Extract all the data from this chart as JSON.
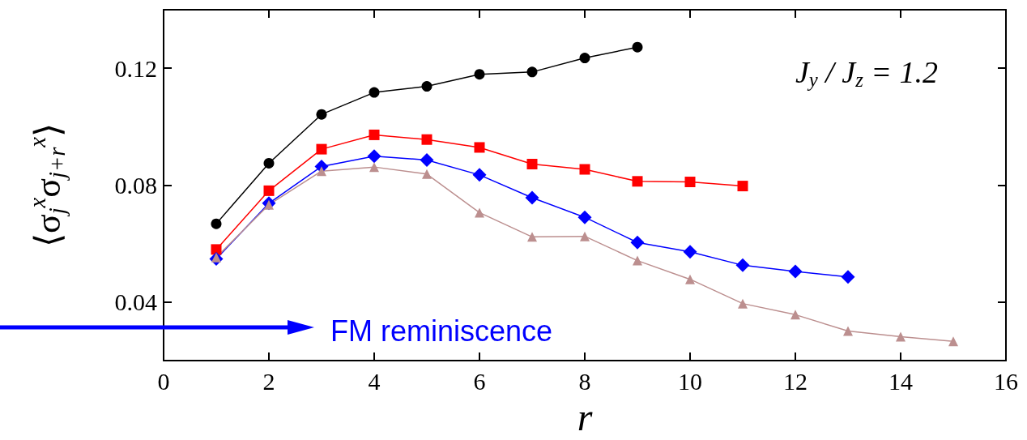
{
  "chart_data": {
    "type": "line",
    "xlabel": "r",
    "ylabel": "⟨σ$_{j}$$^{x}$σ$_{j+r}$$^{x}$⟩",
    "annotations": [
      "J$_{y}$ / J$_{z}$ = 1.2",
      "FM reminiscence"
    ],
    "xlim": [
      0,
      16
    ],
    "xticks": [
      0,
      2,
      4,
      6,
      8,
      10,
      12,
      14,
      16
    ],
    "ylim": [
      0.02,
      0.14
    ],
    "yticks": [
      0.04,
      0.08,
      0.12
    ],
    "grid": false,
    "series": [
      {
        "color": "#000000",
        "marker": "circle",
        "x": [
          1,
          2,
          3,
          4,
          5,
          6,
          7,
          8,
          9
        ],
        "values": [
          0.0668,
          0.0875,
          0.1042,
          0.1117,
          0.1138,
          0.1179,
          0.1187,
          0.1235,
          0.1272
        ]
      },
      {
        "color": "#ff0000",
        "marker": "square",
        "x": [
          1,
          2,
          3,
          4,
          5,
          6,
          7,
          8,
          9,
          10,
          11
        ],
        "values": [
          0.058,
          0.0781,
          0.0923,
          0.0972,
          0.0956,
          0.0929,
          0.0872,
          0.0854,
          0.0813,
          0.0811,
          0.0797
        ]
      },
      {
        "color": "#0000ff",
        "marker": "diamond",
        "x": [
          1,
          2,
          3,
          4,
          5,
          6,
          7,
          8,
          9,
          10,
          11,
          12,
          13
        ],
        "values": [
          0.0548,
          0.0738,
          0.0864,
          0.0899,
          0.0886,
          0.0835,
          0.0757,
          0.069,
          0.0604,
          0.0572,
          0.0526,
          0.0505,
          0.0486
        ]
      },
      {
        "color": "#bc8f8f",
        "marker": "triangle",
        "x": [
          1,
          2,
          3,
          4,
          5,
          6,
          7,
          8,
          9,
          10,
          11,
          12,
          13,
          14,
          15
        ],
        "values": [
          0.0553,
          0.0733,
          0.0848,
          0.0862,
          0.0838,
          0.0706,
          0.0623,
          0.0625,
          0.0542,
          0.0478,
          0.0395,
          0.0357,
          0.0301,
          0.0282,
          0.0266
        ]
      }
    ]
  }
}
